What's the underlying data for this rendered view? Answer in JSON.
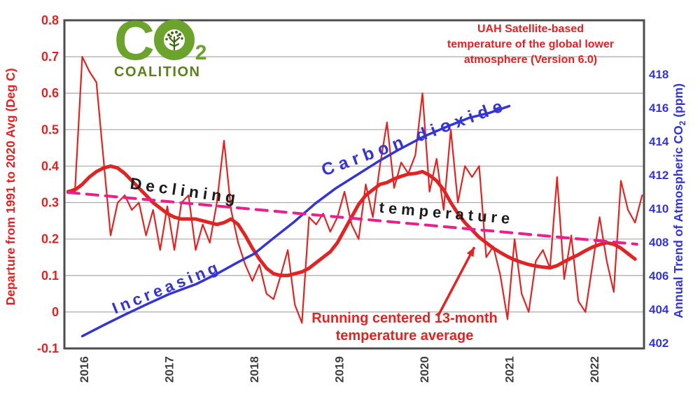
{
  "logo": {
    "c": "C",
    "sub": "2",
    "coalition": "COALITION"
  },
  "title": {
    "line1": "UAH Satellite-based",
    "line2": "temperature of the global lower",
    "line3": "atmosphere (Version 6.0)"
  },
  "annotations": {
    "declining": "Declining",
    "temperature": "temperature",
    "carbon_dioxide": "Carbon dioxide",
    "increasing": "Increasing",
    "running_line1": "Running centered 13-month",
    "running_line2": "temperature average"
  },
  "colors": {
    "red": "#e02423",
    "magenta": "#ec1e8c",
    "blue": "#3434d4",
    "grid": "#a9a9a9",
    "border": "#4d4d4d",
    "left_axis_text": "#e02222",
    "right_axis_text": "#3434d4",
    "year_text": "#3f3f3f",
    "logo_green": "#6ba32d",
    "logo_olive": "#5d7f1c",
    "tree_green": "#3d6614",
    "title_red": "#e12222"
  },
  "chart_data": {
    "type": "line",
    "title": "UAH Satellite-based temperature of the global lower atmosphere (Version 6.0)",
    "grid": true,
    "x_axis": {
      "ticks": [
        2016,
        2017,
        2018,
        2019,
        2020,
        2021,
        2022
      ],
      "range_years": [
        2015.77,
        2022.6
      ]
    },
    "left_axis": {
      "label": "Departure from 1991 to 2020 Avg (Deg C)",
      "range": [
        -0.1,
        0.8
      ],
      "ticks": [
        0.8,
        0.7,
        0.6,
        0.5,
        0.4,
        0.3,
        0.2,
        0.1,
        0,
        -0.1
      ],
      "tick_labels": [
        "0.8",
        "0.7",
        "0.6",
        "0.5",
        "0.4",
        "0.3",
        "0.2",
        "0.1",
        "0",
        "-0.1"
      ]
    },
    "right_axis": {
      "label": "Annual Trend of Atmospheric CO2 (ppm)",
      "label_pre": "Annual Trend of Atmospheric CO",
      "label_sub": "2",
      "label_post": " (ppm)",
      "range": [
        402,
        419.5
      ],
      "ticks": [
        402,
        404,
        406,
        408,
        410,
        412,
        414,
        416,
        418
      ]
    },
    "series": [
      {
        "name": "UAH monthly temperature anomaly",
        "axis": "left",
        "style": "thin",
        "color": "#e02423",
        "start_year": 2015.8125,
        "step_years": 0.08333,
        "values": [
          0.33,
          0.34,
          0.7,
          0.66,
          0.63,
          0.42,
          0.21,
          0.3,
          0.32,
          0.28,
          0.3,
          0.21,
          0.28,
          0.17,
          0.29,
          0.17,
          0.3,
          0.32,
          0.17,
          0.24,
          0.19,
          0.3,
          0.47,
          0.28,
          0.19,
          0.13,
          0.085,
          0.13,
          0.05,
          0.035,
          0.1,
          0.17,
          0.02,
          -0.03,
          0.26,
          0.24,
          0.27,
          0.22,
          0.26,
          0.33,
          0.24,
          0.2,
          0.35,
          0.26,
          0.4,
          0.52,
          0.34,
          0.41,
          0.38,
          0.43,
          0.6,
          0.33,
          0.42,
          0.28,
          0.5,
          0.3,
          0.4,
          0.37,
          0.4,
          0.15,
          0.18,
          0.1,
          -0.02,
          0.2,
          0.05,
          0.0,
          0.14,
          0.17,
          0.12,
          0.37,
          0.09,
          0.21,
          0.03,
          0.0,
          0.13,
          0.26,
          0.14,
          0.055,
          0.36,
          0.28,
          0.245,
          0.32
        ]
      },
      {
        "name": "Running centered 13-month temperature average",
        "axis": "left",
        "style": "thick",
        "color": "#e02423",
        "start_year": 2015.8125,
        "step_years": 0.08333,
        "values": [
          0.33,
          0.335,
          0.35,
          0.37,
          0.385,
          0.395,
          0.4,
          0.395,
          0.38,
          0.36,
          0.34,
          0.32,
          0.3,
          0.285,
          0.27,
          0.26,
          0.255,
          0.255,
          0.255,
          0.25,
          0.245,
          0.24,
          0.245,
          0.255,
          0.24,
          0.21,
          0.175,
          0.145,
          0.12,
          0.105,
          0.1,
          0.1,
          0.105,
          0.11,
          0.12,
          0.135,
          0.15,
          0.165,
          0.19,
          0.225,
          0.26,
          0.295,
          0.32,
          0.335,
          0.35,
          0.355,
          0.365,
          0.372,
          0.378,
          0.38,
          0.385,
          0.375,
          0.36,
          0.335,
          0.3,
          0.27,
          0.245,
          0.225,
          0.205,
          0.19,
          0.175,
          0.163,
          0.152,
          0.143,
          0.136,
          0.13,
          0.126,
          0.123,
          0.121,
          0.127,
          0.138,
          0.148,
          0.157,
          0.168,
          0.178,
          0.185,
          0.19,
          0.186,
          0.175,
          0.16,
          0.145
        ]
      },
      {
        "name": "Atmospheric CO2 annual trend",
        "axis": "right",
        "style": "smooth",
        "color": "#3434d4",
        "points": [
          [
            2015.98,
            402.4
          ],
          [
            2016.25,
            403.1
          ],
          [
            2016.49,
            403.7
          ],
          [
            2016.74,
            404.3
          ],
          [
            2017.0,
            404.9
          ],
          [
            2017.32,
            405.5
          ],
          [
            2017.56,
            406.1
          ],
          [
            2017.81,
            406.8
          ],
          [
            2018.0,
            407.3
          ],
          [
            2018.22,
            408.2
          ],
          [
            2018.47,
            409.2
          ],
          [
            2018.72,
            410.3
          ],
          [
            2018.96,
            411.2
          ],
          [
            2019.21,
            412.0
          ],
          [
            2019.46,
            412.8
          ],
          [
            2019.7,
            413.5
          ],
          [
            2020.0,
            414.3
          ],
          [
            2020.28,
            414.9
          ],
          [
            2020.53,
            415.4
          ],
          [
            2020.77,
            415.7
          ],
          [
            2021.0,
            416.1
          ]
        ]
      },
      {
        "name": "Declining temperature linear trend",
        "axis": "left",
        "style": "dashed",
        "color": "#ec1e8c",
        "points": [
          [
            2015.81,
            0.328
          ],
          [
            2022.5,
            0.186
          ]
        ]
      }
    ],
    "arrow": {
      "from_year": 2020.16,
      "from_value": -0.012,
      "to_year": 2020.59,
      "to_value": 0.178
    }
  }
}
